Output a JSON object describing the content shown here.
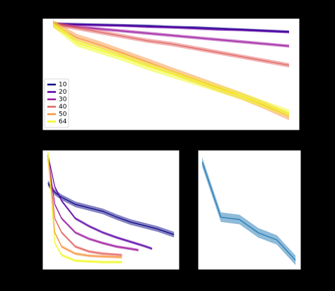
{
  "chart_data": [
    {
      "type": "line",
      "x": [
        0,
        1,
        2,
        3,
        4,
        5,
        6,
        7,
        8,
        9,
        10
      ],
      "xlim": [
        -0.45,
        10.45
      ],
      "ylim": [
        -1.0,
        0.05
      ],
      "legend": "lower left",
      "series": [
        {
          "name": "10",
          "color": "#0d0887",
          "error": 0.012,
          "values": [
            0,
            -0.005,
            -0.01,
            -0.015,
            -0.02,
            -0.03,
            -0.035,
            -0.045,
            -0.055,
            -0.065,
            -0.075
          ]
        },
        {
          "name": "20",
          "color": "#5c01a6",
          "error": 0.012,
          "values": [
            0,
            -0.01,
            -0.015,
            -0.02,
            -0.03,
            -0.035,
            -0.045,
            -0.055,
            -0.06,
            -0.07,
            -0.08
          ]
        },
        {
          "name": "30",
          "color": "#9c179e",
          "error": 0.015,
          "values": [
            0,
            -0.03,
            -0.05,
            -0.07,
            -0.09,
            -0.11,
            -0.13,
            -0.15,
            -0.17,
            -0.19,
            -0.21
          ]
        },
        {
          "name": "40",
          "color": "#e16462",
          "error": 0.02,
          "values": [
            0,
            -0.04,
            -0.08,
            -0.12,
            -0.16,
            -0.19,
            -0.23,
            -0.27,
            -0.31,
            -0.35,
            -0.39
          ]
        },
        {
          "name": "50",
          "color": "#f89540",
          "error": 0.035,
          "values": [
            0,
            -0.13,
            -0.2,
            -0.28,
            -0.36,
            -0.44,
            -0.52,
            -0.6,
            -0.68,
            -0.77,
            -0.87
          ]
        },
        {
          "name": "64",
          "color": "#f0f921",
          "error": 0.035,
          "values": [
            0,
            -0.18,
            -0.25,
            -0.32,
            -0.4,
            -0.47,
            -0.54,
            -0.61,
            -0.68,
            -0.76,
            -0.84
          ]
        }
      ]
    },
    {
      "type": "line",
      "xlim": [
        -4,
        96
      ],
      "ylim": [
        0.3,
        2.0
      ],
      "series": [
        {
          "color": "#0d0887",
          "error": 0.04,
          "x": [
            0,
            5,
            10,
            20,
            30,
            40,
            50,
            60,
            70,
            80,
            92
          ],
          "values": [
            1.53,
            1.4,
            1.33,
            1.23,
            1.18,
            1.13,
            1.05,
            0.98,
            0.93,
            0.88,
            0.8
          ]
        },
        {
          "color": "#5c01a6",
          "error": 0.02,
          "x": [
            0,
            5,
            10,
            20,
            30,
            40,
            50,
            60,
            70,
            76
          ],
          "values": [
            1.93,
            1.48,
            1.28,
            1.03,
            0.92,
            0.83,
            0.76,
            0.7,
            0.64,
            0.6
          ]
        },
        {
          "color": "#9c179e",
          "error": 0.02,
          "x": [
            0,
            5,
            10,
            20,
            30,
            40,
            50,
            60,
            66
          ],
          "values": [
            1.93,
            1.23,
            1.03,
            0.83,
            0.74,
            0.68,
            0.63,
            0.6,
            0.58
          ]
        },
        {
          "color": "#e16462",
          "error": 0.02,
          "x": [
            0,
            5,
            10,
            20,
            30,
            40,
            54
          ],
          "values": [
            1.93,
            1.03,
            0.83,
            0.63,
            0.56,
            0.53,
            0.51
          ]
        },
        {
          "color": "#f89540",
          "error": 0.02,
          "x": [
            0,
            5,
            10,
            20,
            30,
            40,
            54
          ],
          "values": [
            1.88,
            0.83,
            0.63,
            0.53,
            0.5,
            0.49,
            0.48
          ]
        },
        {
          "color": "#f0f921",
          "error": 0.02,
          "x": [
            0,
            5,
            10,
            20,
            30,
            40,
            54
          ],
          "values": [
            1.98,
            0.68,
            0.51,
            0.43,
            0.42,
            0.41,
            0.41
          ]
        }
      ]
    },
    {
      "type": "line",
      "x": [
        0,
        1,
        2,
        3,
        4,
        5
      ],
      "xlim": [
        -0.23,
        5.3
      ],
      "ylim": [
        0,
        1
      ],
      "series": [
        {
          "color": "#1f77b4",
          "error": 0.04,
          "values": [
            0.9,
            0.44,
            0.42,
            0.31,
            0.25,
            0.08
          ]
        }
      ]
    }
  ]
}
